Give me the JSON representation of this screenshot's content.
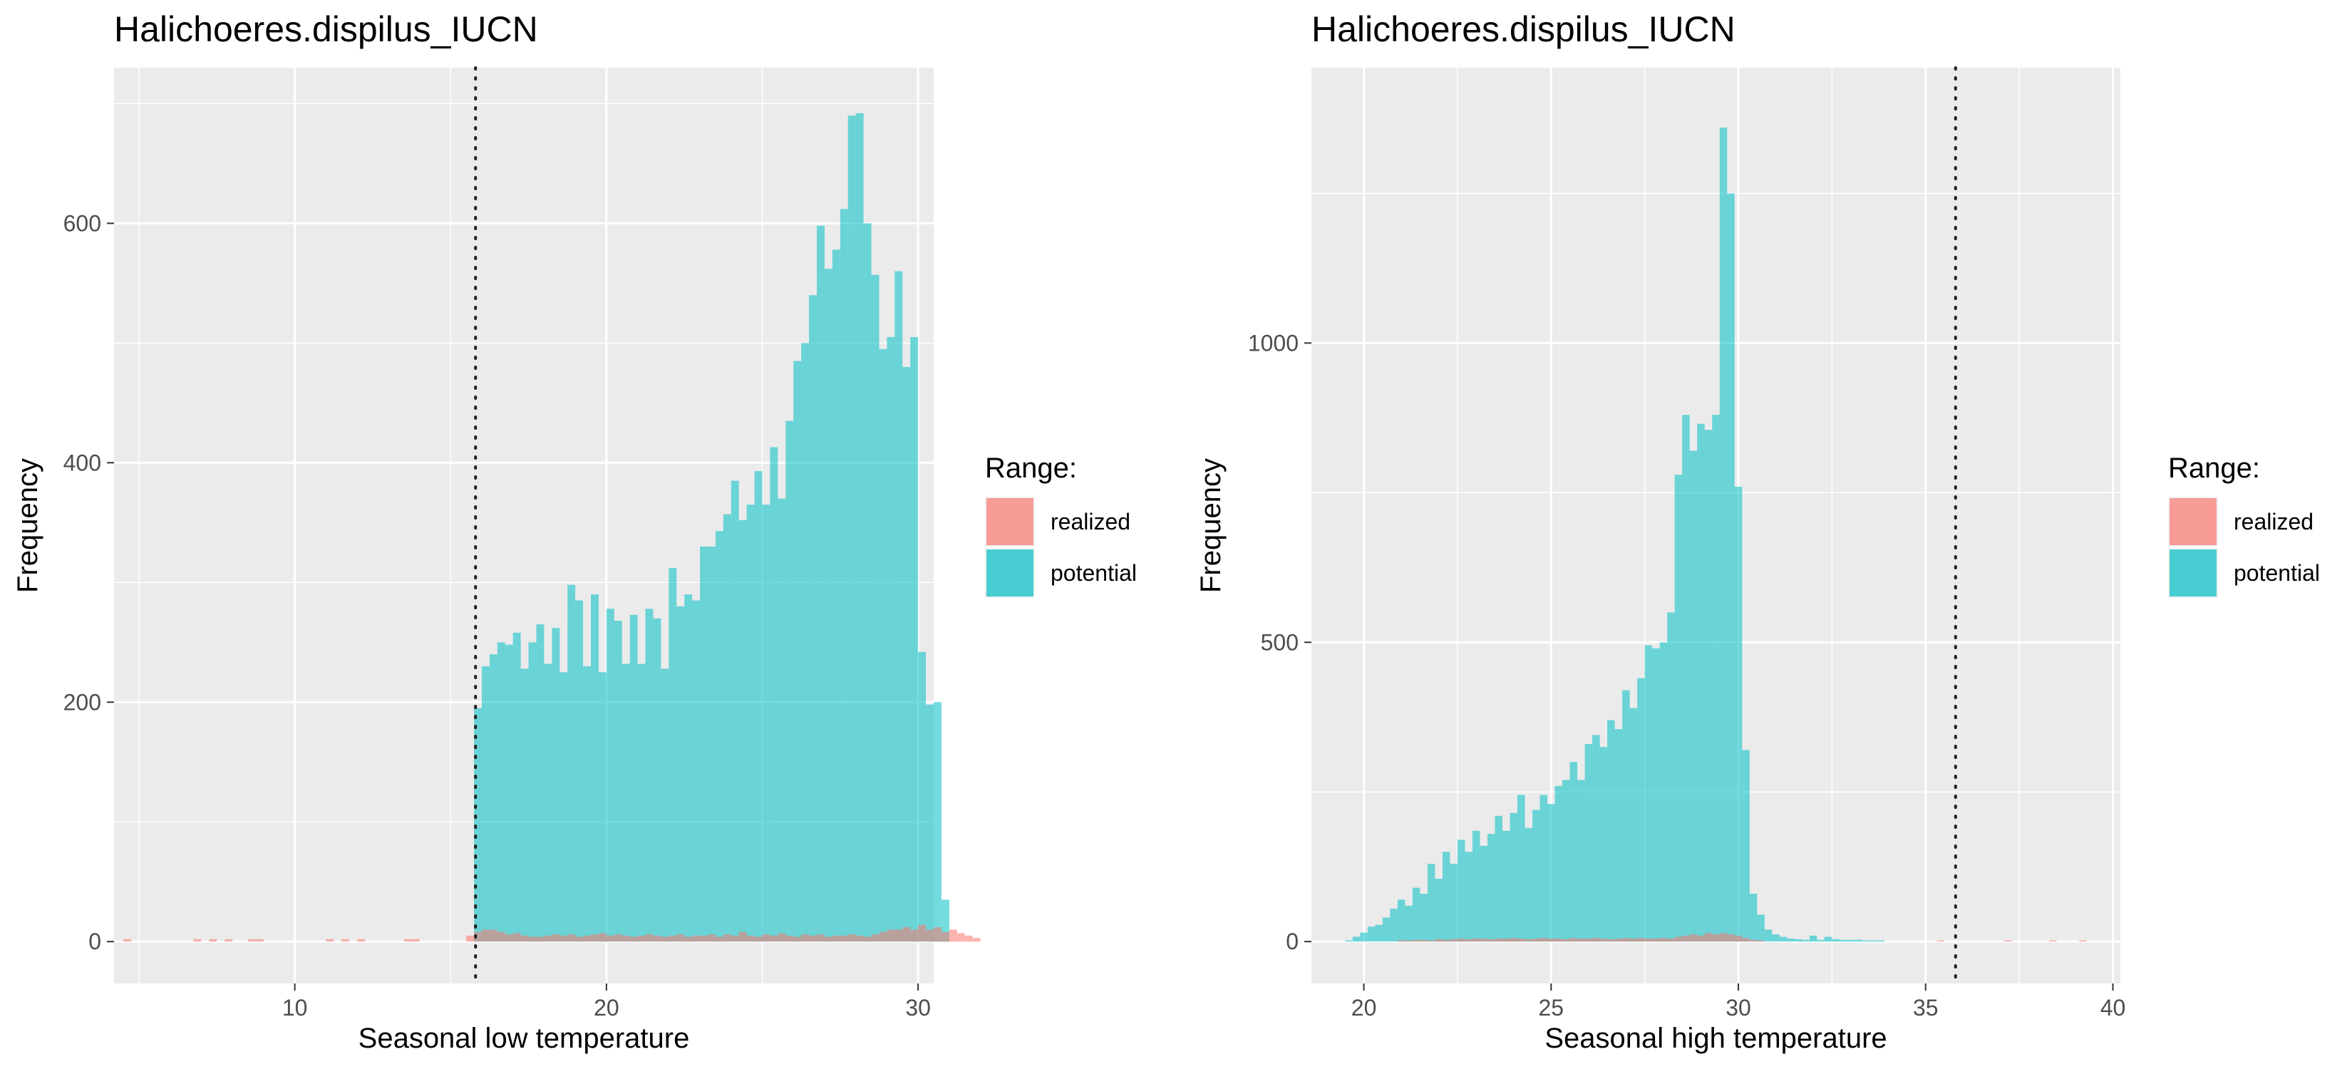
{
  "chart_data": [
    {
      "type": "histogram",
      "title": "Halichoeres.dispilus_IUCN",
      "xlabel": "Seasonal low temperature",
      "ylabel": "Frequency",
      "xlim": [
        4.2,
        30.5
      ],
      "ylim": [
        -35,
        730
      ],
      "x_ticks": [
        10,
        20,
        30
      ],
      "y_ticks": [
        0,
        200,
        400,
        600
      ],
      "grid": true,
      "legend_position": "right",
      "legend": {
        "title": "Range:",
        "entries": [
          {
            "label": "realized",
            "color": "#F8766D"
          },
          {
            "label": "potential",
            "color": "#00BFC4"
          }
        ]
      },
      "vline": 15.8,
      "bin_width": 0.25,
      "series": [
        {
          "name": "potential",
          "x_start": 15.75,
          "values": [
            195,
            230,
            240,
            250,
            248,
            258,
            228,
            250,
            265,
            232,
            262,
            225,
            298,
            285,
            230,
            290,
            225,
            278,
            268,
            232,
            273,
            232,
            278,
            270,
            228,
            312,
            280,
            290,
            285,
            330,
            330,
            343,
            357,
            385,
            352,
            365,
            393,
            365,
            413,
            370,
            435,
            485,
            500,
            540,
            598,
            562,
            578,
            612,
            690,
            692,
            600,
            557,
            495,
            505,
            560,
            480,
            505,
            242,
            198,
            200,
            35
          ]
        },
        {
          "name": "realized",
          "x_start": 4.25,
          "values": [
            0,
            2,
            0,
            0,
            0,
            0,
            0,
            0,
            0,
            0,
            2,
            0,
            2,
            0,
            2,
            0,
            0,
            2,
            2,
            0,
            0,
            0,
            0,
            0,
            0,
            0,
            0,
            2,
            0,
            2,
            0,
            2,
            0,
            0,
            0,
            0,
            0,
            2,
            2,
            0,
            0,
            0,
            0,
            0,
            0,
            5,
            8,
            10,
            10,
            8,
            6,
            7,
            5,
            4,
            4,
            5,
            6,
            5,
            6,
            4,
            5,
            6,
            7,
            5,
            6,
            5,
            4,
            5,
            6,
            5,
            4,
            5,
            6,
            4,
            5,
            5,
            6,
            4,
            6,
            5,
            8,
            5,
            4,
            6,
            5,
            7,
            5,
            4,
            6,
            5,
            6,
            4,
            5,
            5,
            6,
            5,
            4,
            6,
            8,
            10,
            10,
            12,
            10,
            14,
            10,
            12,
            8,
            10,
            7,
            5,
            3,
            0,
            0
          ]
        }
      ]
    },
    {
      "type": "histogram",
      "title": "Halichoeres.dispilus_IUCN",
      "xlabel": "Seasonal high temperature",
      "ylabel": "Frequency",
      "xlim": [
        18.6,
        40.2
      ],
      "ylim": [
        -70,
        1460
      ],
      "x_ticks": [
        20,
        25,
        30,
        35,
        40
      ],
      "y_ticks": [
        0,
        500,
        1000
      ],
      "grid": true,
      "legend_position": "right",
      "legend": {
        "title": "Range:",
        "entries": [
          {
            "label": "realized",
            "color": "#F8766D"
          },
          {
            "label": "potential",
            "color": "#00BFC4"
          }
        ]
      },
      "vline": 35.8,
      "bin_width": 0.2,
      "series": [
        {
          "name": "potential",
          "x_start": 19.5,
          "values": [
            2,
            8,
            15,
            25,
            28,
            40,
            55,
            70,
            60,
            90,
            80,
            130,
            105,
            150,
            130,
            170,
            150,
            185,
            160,
            180,
            210,
            185,
            215,
            245,
            190,
            220,
            245,
            230,
            260,
            270,
            300,
            270,
            330,
            345,
            325,
            370,
            355,
            420,
            390,
            440,
            495,
            490,
            500,
            550,
            780,
            880,
            820,
            865,
            855,
            880,
            1360,
            1250,
            760,
            320,
            80,
            45,
            20,
            12,
            8,
            5,
            4,
            3,
            10,
            3,
            8,
            4,
            3,
            3,
            3,
            2,
            2,
            2
          ]
        },
        {
          "name": "realized",
          "x_start": 19.5,
          "values": [
            0,
            0,
            0,
            0,
            0,
            0,
            0,
            2,
            2,
            3,
            3,
            2,
            4,
            3,
            4,
            5,
            4,
            5,
            5,
            4,
            5,
            5,
            6,
            5,
            4,
            5,
            6,
            5,
            5,
            4,
            6,
            5,
            5,
            6,
            5,
            4,
            5,
            6,
            5,
            6,
            5,
            5,
            6,
            5,
            8,
            10,
            12,
            10,
            14,
            12,
            14,
            12,
            10,
            6,
            3,
            2,
            0,
            0,
            0,
            0,
            0,
            0,
            0,
            0,
            0,
            0,
            0,
            0,
            0,
            0,
            0,
            0,
            0,
            0,
            0,
            0,
            0,
            0,
            0,
            2,
            0,
            0,
            0,
            0,
            0,
            0,
            0,
            0,
            2,
            0,
            0,
            0,
            0,
            0,
            2,
            0,
            0,
            0,
            2,
            0,
            0
          ]
        }
      ]
    }
  ]
}
